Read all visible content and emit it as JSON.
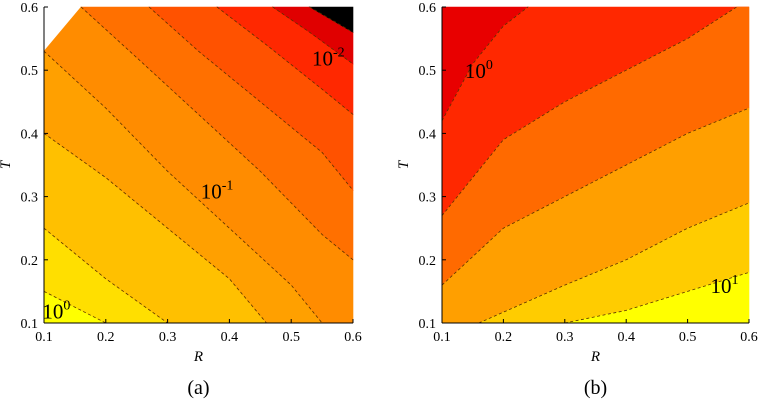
{
  "figure": {
    "panels": [
      {
        "id": "a",
        "caption": "(a)",
        "xlabel": "R",
        "ylabel": "T",
        "xticks": [
          "0.1",
          "0.2",
          "0.3",
          "0.4",
          "0.5",
          "0.6"
        ],
        "yticks": [
          "0.1",
          "0.2",
          "0.3",
          "0.4",
          "0.5",
          "0.6"
        ],
        "contour_labels": [
          {
            "base": "10",
            "exp": "0"
          },
          {
            "base": "10",
            "exp": "-1"
          },
          {
            "base": "10",
            "exp": "-2"
          }
        ]
      },
      {
        "id": "b",
        "caption": "(b)",
        "xlabel": "R",
        "ylabel": "T",
        "xticks": [
          "0.1",
          "0.2",
          "0.3",
          "0.4",
          "0.5",
          "0.6"
        ],
        "yticks": [
          "0.1",
          "0.2",
          "0.3",
          "0.4",
          "0.5",
          "0.6"
        ],
        "contour_labels": [
          {
            "base": "10",
            "exp": "0"
          },
          {
            "base": "10",
            "exp": "1"
          }
        ]
      }
    ]
  },
  "chart_data": [
    {
      "type": "heatmap",
      "subtype": "filled-contour",
      "panel": "(a)",
      "xlabel": "R",
      "ylabel": "T",
      "xlim": [
        0.1,
        0.6
      ],
      "ylim": [
        0.1,
        0.6
      ],
      "scale": "log",
      "colormap": "hot",
      "contour_line_style": "dashed",
      "levels_labeled": [
        {
          "label": "10^0",
          "R": 0.12,
          "T": 0.12
        },
        {
          "label": "10^-1",
          "R": 0.38,
          "T": 0.31
        },
        {
          "label": "10^-2",
          "R": 0.56,
          "T": 0.52
        }
      ],
      "trend": "value decreases as R and T increase; maximum near (0.1, 0.1), minimum near (0.6, 0.6)",
      "contour_lines": [
        [
          [
            0.1,
            0.15
          ],
          [
            0.2,
            0.1
          ]
        ],
        [
          [
            0.1,
            0.25
          ],
          [
            0.2,
            0.17
          ],
          [
            0.3,
            0.1
          ]
        ],
        [
          [
            0.1,
            0.4
          ],
          [
            0.2,
            0.33
          ],
          [
            0.3,
            0.25
          ],
          [
            0.4,
            0.17
          ],
          [
            0.46,
            0.1
          ]
        ],
        [
          [
            0.1,
            0.53
          ],
          [
            0.2,
            0.44
          ],
          [
            0.3,
            0.34
          ],
          [
            0.4,
            0.25
          ],
          [
            0.5,
            0.16
          ],
          [
            0.55,
            0.1
          ]
        ],
        [
          [
            0.16,
            0.6
          ],
          [
            0.25,
            0.52
          ],
          [
            0.35,
            0.43
          ],
          [
            0.45,
            0.34
          ],
          [
            0.55,
            0.24
          ],
          [
            0.6,
            0.2
          ]
        ],
        [
          [
            0.27,
            0.6
          ],
          [
            0.35,
            0.53
          ],
          [
            0.45,
            0.45
          ],
          [
            0.55,
            0.37
          ],
          [
            0.6,
            0.31
          ]
        ],
        [
          [
            0.38,
            0.6
          ],
          [
            0.46,
            0.54
          ],
          [
            0.55,
            0.47
          ],
          [
            0.6,
            0.43
          ]
        ],
        [
          [
            0.47,
            0.6
          ],
          [
            0.53,
            0.56
          ],
          [
            0.6,
            0.51
          ]
        ],
        [
          [
            0.53,
            0.6
          ],
          [
            0.6,
            0.56
          ]
        ]
      ],
      "region_colors": [
        "#ffff00",
        "#ffdf00",
        "#ffc000",
        "#ffa000",
        "#ff8c00",
        "#ff7000",
        "#ff5200",
        "#ff2800",
        "#e00000",
        "#000000"
      ]
    },
    {
      "type": "heatmap",
      "subtype": "filled-contour",
      "panel": "(b)",
      "xlabel": "R",
      "ylabel": "T",
      "xlim": [
        0.1,
        0.6
      ],
      "ylim": [
        0.1,
        0.6
      ],
      "scale": "log",
      "colormap": "hot",
      "contour_line_style": "dashed",
      "levels_labeled": [
        {
          "label": "10^0",
          "R": 0.16,
          "T": 0.5
        },
        {
          "label": "10^1",
          "R": 0.56,
          "T": 0.16
        }
      ],
      "trend": "value increases with R and decreases with T; minimum near (0.1, 0.6), maximum near (0.6, 0.1)",
      "contour_lines": [
        [
          [
            0.1,
            0.42
          ],
          [
            0.15,
            0.51
          ],
          [
            0.2,
            0.57
          ],
          [
            0.24,
            0.6
          ]
        ],
        [
          [
            0.1,
            0.27
          ],
          [
            0.2,
            0.39
          ],
          [
            0.3,
            0.45
          ],
          [
            0.4,
            0.5
          ],
          [
            0.5,
            0.55
          ],
          [
            0.58,
            0.6
          ]
        ],
        [
          [
            0.1,
            0.16
          ],
          [
            0.2,
            0.25
          ],
          [
            0.3,
            0.3
          ],
          [
            0.4,
            0.35
          ],
          [
            0.5,
            0.4
          ],
          [
            0.6,
            0.44
          ]
        ],
        [
          [
            0.16,
            0.1
          ],
          [
            0.3,
            0.16
          ],
          [
            0.4,
            0.2
          ],
          [
            0.5,
            0.25
          ],
          [
            0.6,
            0.29
          ]
        ],
        [
          [
            0.3,
            0.1
          ],
          [
            0.4,
            0.12
          ],
          [
            0.5,
            0.15
          ],
          [
            0.6,
            0.18
          ]
        ]
      ],
      "region_colors": [
        "#e80000",
        "#ff2800",
        "#ff6a00",
        "#ff9f00",
        "#ffcc00",
        "#ffff00"
      ]
    }
  ]
}
